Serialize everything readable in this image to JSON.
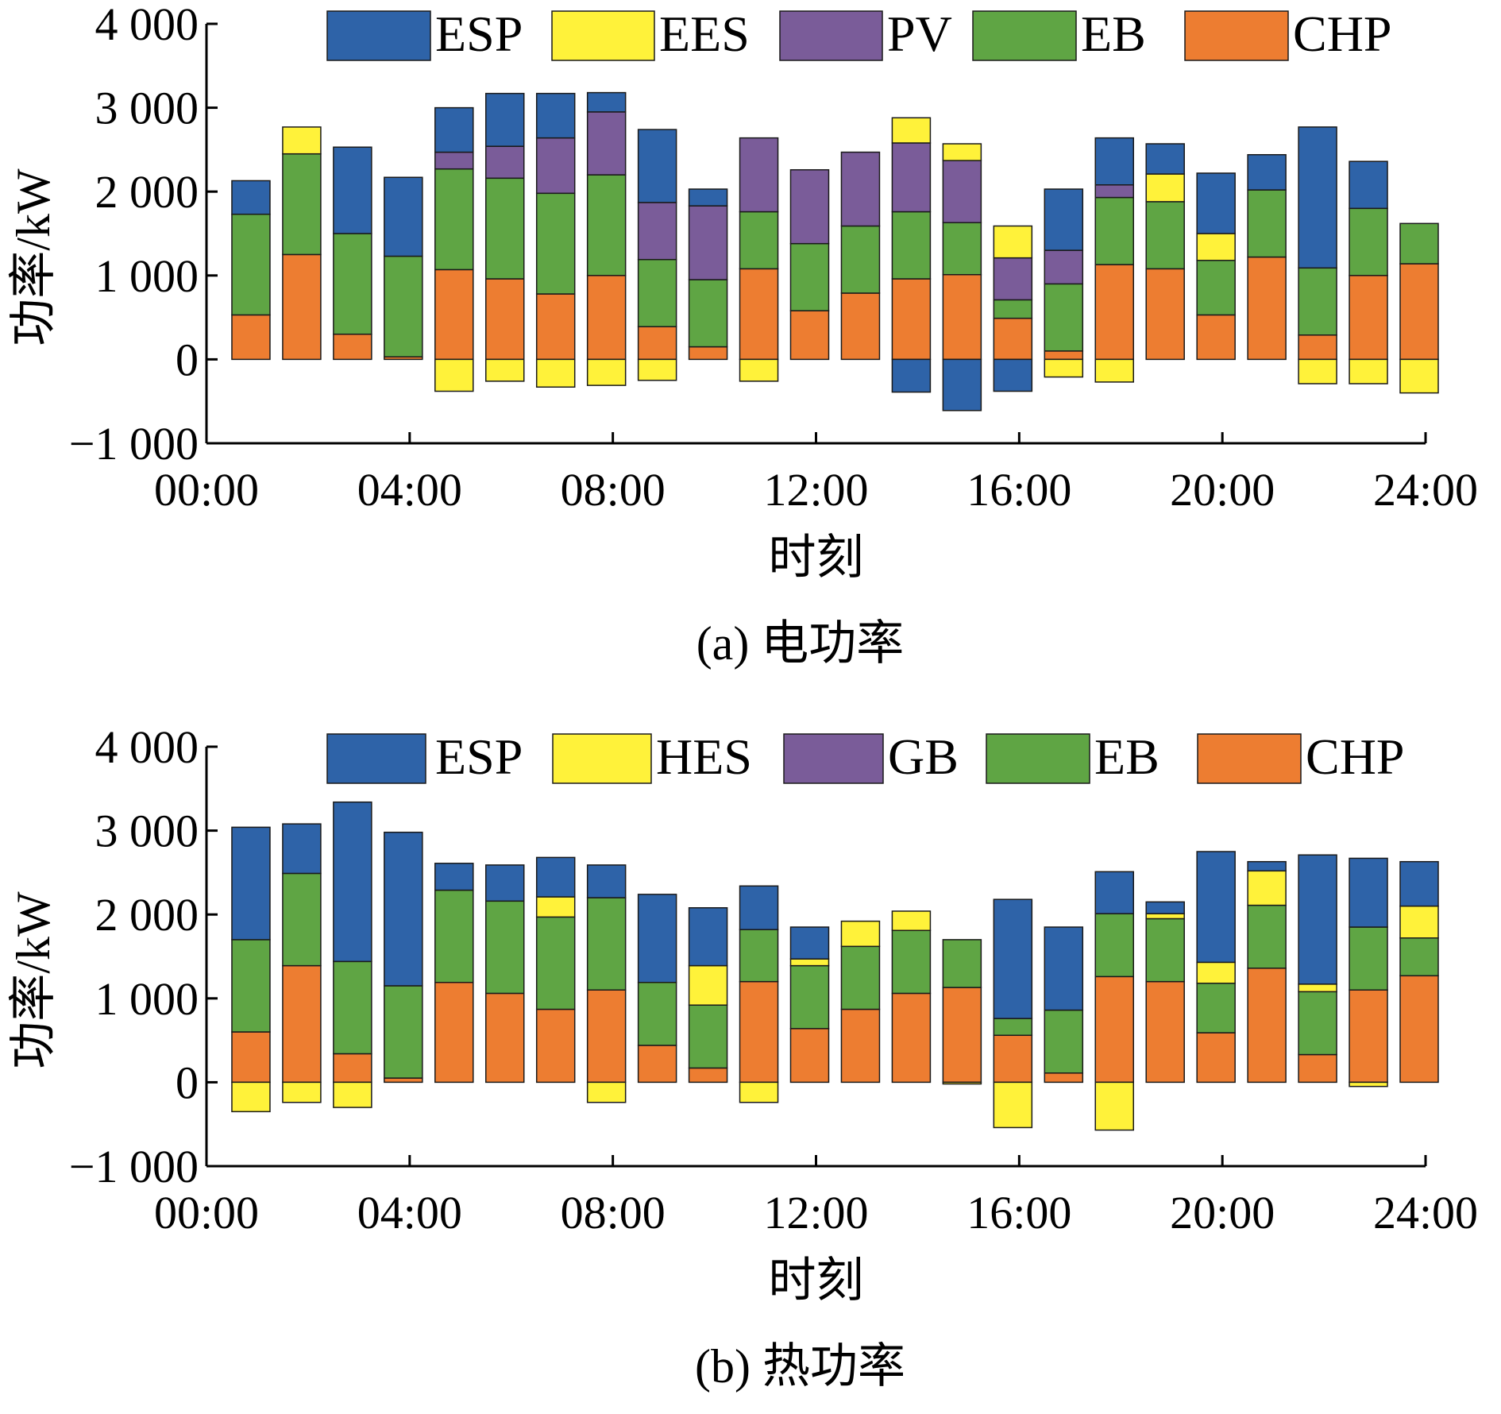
{
  "chart_data": [
    {
      "type": "bar",
      "stacked": true,
      "caption": "(a) 电功率",
      "xlabel": "时刻",
      "ylabel": "功率/kW",
      "ylim": [
        -1000,
        4000
      ],
      "xlim_hours": [
        0,
        24
      ],
      "yticks": [
        -1000,
        0,
        1000,
        2000,
        3000,
        4000
      ],
      "ytick_labels": [
        "−1 000",
        "0",
        "1 000",
        "2 000",
        "3 000",
        "4 000"
      ],
      "xticks_hours": [
        0,
        4,
        8,
        12,
        16,
        20,
        24
      ],
      "xtick_labels": [
        "00:00",
        "04:00",
        "08:00",
        "12:00",
        "16:00",
        "20:00",
        "24:00"
      ],
      "x_hours": [
        1,
        2,
        3,
        4,
        5,
        6,
        7,
        8,
        9,
        10,
        11,
        12,
        13,
        14,
        15,
        16,
        17,
        18,
        19,
        20,
        21,
        22,
        23,
        24
      ],
      "legend": [
        "ESP",
        "EES",
        "PV",
        "EB",
        "CHP"
      ],
      "legend_position": "top",
      "grid": false,
      "series": [
        {
          "name": "CHP",
          "color": "#ED7D31",
          "values": [
            530,
            1250,
            300,
            30,
            1070,
            960,
            780,
            1000,
            390,
            150,
            1080,
            580,
            790,
            960,
            1010,
            490,
            100,
            1130,
            1080,
            530,
            1220,
            290,
            1000,
            1140
          ]
        },
        {
          "name": "EB",
          "color": "#5FA544",
          "values": [
            1200,
            1200,
            1200,
            1200,
            1200,
            1200,
            1200,
            1200,
            800,
            800,
            680,
            800,
            800,
            800,
            620,
            220,
            800,
            800,
            800,
            650,
            800,
            800,
            800,
            480
          ]
        },
        {
          "name": "PV",
          "color": "#7A5C99",
          "values": [
            0,
            0,
            0,
            0,
            200,
            380,
            660,
            750,
            680,
            880,
            880,
            880,
            880,
            820,
            740,
            500,
            400,
            150,
            0,
            0,
            0,
            0,
            0,
            0
          ]
        },
        {
          "name": "EES",
          "color": "#FFF23A",
          "values": [
            0,
            320,
            0,
            0,
            -380,
            -260,
            -330,
            -310,
            -250,
            0,
            -260,
            0,
            0,
            300,
            200,
            380,
            -210,
            -270,
            330,
            320,
            0,
            -290,
            -290,
            -400
          ]
        },
        {
          "name": "ESP",
          "color": "#2E63A8",
          "values": [
            400,
            0,
            1030,
            940,
            530,
            630,
            530,
            230,
            870,
            200,
            0,
            0,
            0,
            0,
            0,
            -380,
            730,
            560,
            360,
            720,
            420,
            1680,
            560,
            0
          ]
        },
        {
          "name": "ESP_neg",
          "color": "#2E63A8",
          "values": [
            0,
            0,
            0,
            0,
            0,
            0,
            0,
            0,
            0,
            0,
            0,
            0,
            0,
            -390,
            -610,
            0,
            0,
            0,
            0,
            0,
            0,
            0,
            0,
            0
          ]
        }
      ]
    },
    {
      "type": "bar",
      "stacked": true,
      "caption": "(b) 热功率",
      "xlabel": "时刻",
      "ylabel": "功率/kW",
      "ylim": [
        -1000,
        4000
      ],
      "xlim_hours": [
        0,
        24
      ],
      "yticks": [
        -1000,
        0,
        1000,
        2000,
        3000,
        4000
      ],
      "ytick_labels": [
        "−1 000",
        "0",
        "1 000",
        "2 000",
        "3 000",
        "4 000"
      ],
      "xticks_hours": [
        0,
        4,
        8,
        12,
        16,
        20,
        24
      ],
      "xtick_labels": [
        "00:00",
        "04:00",
        "08:00",
        "12:00",
        "16:00",
        "20:00",
        "24:00"
      ],
      "x_hours": [
        1,
        2,
        3,
        4,
        5,
        6,
        7,
        8,
        9,
        10,
        11,
        12,
        13,
        14,
        15,
        16,
        17,
        18,
        19,
        20,
        21,
        22,
        23,
        24
      ],
      "legend": [
        "ESP",
        "HES",
        "GB",
        "EB",
        "CHP"
      ],
      "legend_position": "top",
      "grid": false,
      "series": [
        {
          "name": "CHP",
          "color": "#ED7D31",
          "values": [
            600,
            1390,
            340,
            50,
            1190,
            1060,
            870,
            1100,
            440,
            170,
            1200,
            640,
            870,
            1060,
            1130,
            560,
            110,
            1260,
            1200,
            590,
            1360,
            330,
            1100,
            1270
          ]
        },
        {
          "name": "EB",
          "color": "#5FA544",
          "values": [
            1100,
            1100,
            1100,
            1100,
            1100,
            1100,
            1100,
            1100,
            750,
            750,
            620,
            750,
            750,
            750,
            570,
            200,
            750,
            750,
            750,
            590,
            750,
            750,
            750,
            450
          ]
        },
        {
          "name": "GB",
          "color": "#7A5C99",
          "values": [
            0,
            0,
            0,
            0,
            0,
            0,
            0,
            0,
            0,
            0,
            0,
            0,
            0,
            0,
            0,
            0,
            0,
            0,
            0,
            0,
            0,
            0,
            0,
            0
          ]
        },
        {
          "name": "HES",
          "color": "#FFF23A",
          "values": [
            -350,
            -240,
            -300,
            0,
            0,
            0,
            240,
            -240,
            0,
            470,
            -240,
            80,
            300,
            230,
            -20,
            -540,
            0,
            -570,
            60,
            250,
            410,
            90,
            -50,
            380
          ]
        },
        {
          "name": "ESP",
          "color": "#2E63A8",
          "values": [
            1340,
            590,
            1900,
            1830,
            320,
            430,
            470,
            390,
            1050,
            690,
            520,
            380,
            0,
            0,
            0,
            1420,
            990,
            500,
            140,
            1320,
            110,
            1540,
            820,
            530
          ]
        }
      ]
    }
  ]
}
